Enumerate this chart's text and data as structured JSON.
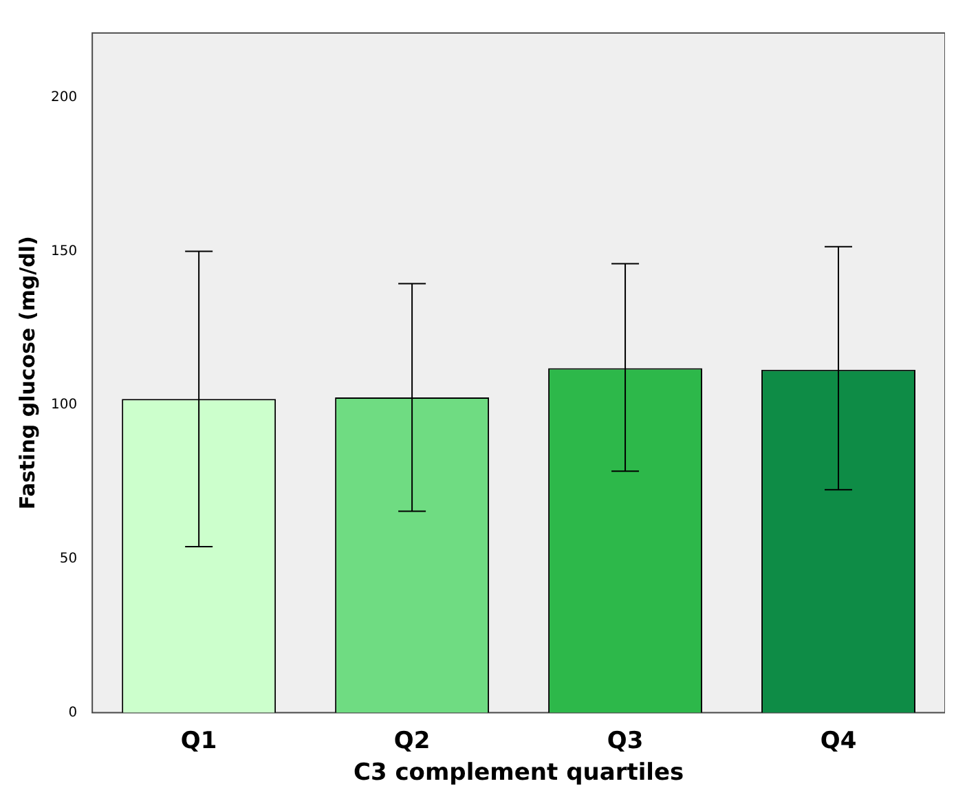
{
  "chart_data": {
    "type": "bar",
    "xlabel": "C3 complement quartiles",
    "ylabel": "Fasting glucose (mg/dl)",
    "categories": [
      "Q1",
      "Q2",
      "Q3",
      "Q4"
    ],
    "values": [
      102,
      102.5,
      112,
      111.5
    ],
    "colors": [
      "#ccffcc",
      "#6fdc82",
      "#2db84a",
      "#0e8c46"
    ],
    "errors": [
      [
        54,
        150
      ],
      [
        65.5,
        139.5
      ],
      [
        78.5,
        146
      ],
      [
        72.5,
        151.5
      ]
    ],
    "ylim": [
      0,
      221
    ],
    "yticks": [
      0,
      50,
      100,
      150,
      200
    ],
    "grid": false,
    "legend": false
  }
}
